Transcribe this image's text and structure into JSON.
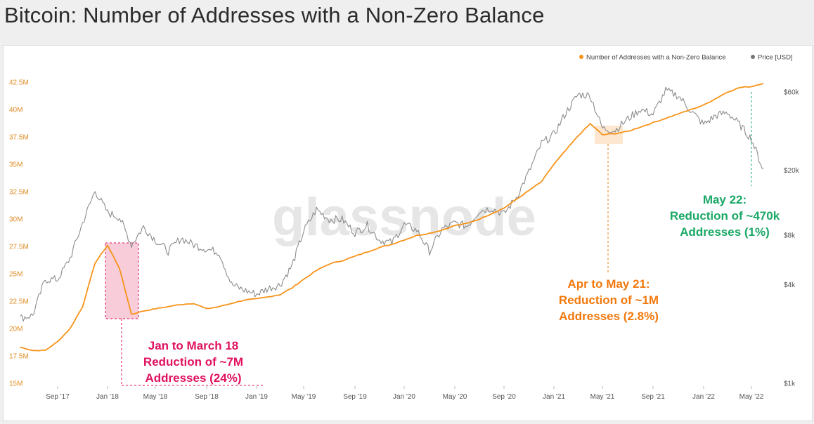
{
  "title": "Bitcoin: Number of Addresses with a Non-Zero Balance",
  "watermark": "glassnode",
  "colors": {
    "addresses": "#f7931a",
    "price": "#8c8c8c",
    "annotation_jan_mar_18": "#e0115f",
    "annotation_apr_may_21": "#f2780c",
    "annotation_may_22": "#1aa866",
    "left_axis": "#e08d28",
    "background": "#ffffff"
  },
  "legend": {
    "addresses_label": "Number of Addresses with a Non-Zero Balance",
    "price_label": "Price [USD]"
  },
  "annotations": {
    "jan_mar_18": [
      "Jan to March 18",
      "Reduction of ~7M",
      "Addresses (24%)"
    ],
    "apr_may_21": [
      "Apr to May 21:",
      "Reduction of ~1M",
      "Addresses (2.8%)"
    ],
    "may_22": [
      "May 22:",
      "Reduction of ~470k",
      "Addresses (1%)"
    ]
  },
  "chart_data": {
    "type": "line",
    "title": "Bitcoin: Number of Addresses with a Non-Zero Balance",
    "x_ticks": [
      "Sep '17",
      "Jan '18",
      "May '18",
      "Sep '18",
      "Jan '19",
      "May '19",
      "Sep '19",
      "Jan '20",
      "May '20",
      "Sep '20",
      "Jan '21",
      "May '21",
      "Sep '21",
      "Jan '22",
      "May '22"
    ],
    "y_left_ticks": [
      "15M",
      "17.5M",
      "20M",
      "22.5M",
      "25M",
      "27.5M",
      "30M",
      "32.5M",
      "35M",
      "37.5M",
      "40M",
      "42.5M"
    ],
    "y_left_range": [
      15,
      42.5
    ],
    "y_right_ticks": [
      "$1k",
      "$4k",
      "$8k",
      "$20k",
      "$60k"
    ],
    "y_right_scale": "log",
    "grid": false,
    "legend_position": "top-right",
    "series": [
      {
        "name": "Number of Addresses with a Non-Zero Balance",
        "axis": "left",
        "unit": "M",
        "points": [
          [
            "2017-06",
            18.3
          ],
          [
            "2017-07",
            18.0
          ],
          [
            "2017-08",
            18.0
          ],
          [
            "2017-09",
            18.8
          ],
          [
            "2017-10",
            20.0
          ],
          [
            "2017-11",
            22.0
          ],
          [
            "2017-12",
            26.0
          ],
          [
            "2018-01",
            27.6
          ],
          [
            "2018-02",
            25.5
          ],
          [
            "2018-03",
            21.3
          ],
          [
            "2018-04",
            21.6
          ],
          [
            "2018-05",
            21.8
          ],
          [
            "2018-06",
            22.0
          ],
          [
            "2018-07",
            22.2
          ],
          [
            "2018-08",
            22.3
          ],
          [
            "2018-09",
            21.8
          ],
          [
            "2018-10",
            22.0
          ],
          [
            "2018-11",
            22.3
          ],
          [
            "2018-12",
            22.6
          ],
          [
            "2019-01",
            22.7
          ],
          [
            "2019-02",
            22.9
          ],
          [
            "2019-03",
            23.1
          ],
          [
            "2019-04",
            23.7
          ],
          [
            "2019-05",
            24.5
          ],
          [
            "2019-06",
            25.3
          ],
          [
            "2019-07",
            25.9
          ],
          [
            "2019-08",
            26.2
          ],
          [
            "2019-09",
            26.6
          ],
          [
            "2019-10",
            27.0
          ],
          [
            "2019-11",
            27.4
          ],
          [
            "2019-12",
            27.7
          ],
          [
            "2020-01",
            28.1
          ],
          [
            "2020-02",
            28.5
          ],
          [
            "2020-03",
            28.7
          ],
          [
            "2020-04",
            29.0
          ],
          [
            "2020-05",
            29.4
          ],
          [
            "2020-06",
            29.6
          ],
          [
            "2020-07",
            30.0
          ],
          [
            "2020-08",
            30.5
          ],
          [
            "2020-09",
            31.0
          ],
          [
            "2020-10",
            31.8
          ],
          [
            "2020-11",
            32.6
          ],
          [
            "2020-12",
            33.4
          ],
          [
            "2021-01",
            35.0
          ],
          [
            "2021-02",
            36.3
          ],
          [
            "2021-03",
            37.6
          ],
          [
            "2021-04",
            38.7
          ],
          [
            "2021-05",
            37.7
          ],
          [
            "2021-06",
            37.8
          ],
          [
            "2021-07",
            38.0
          ],
          [
            "2021-08",
            38.4
          ],
          [
            "2021-09",
            38.8
          ],
          [
            "2021-10",
            39.2
          ],
          [
            "2021-11",
            39.6
          ],
          [
            "2021-12",
            40.0
          ],
          [
            "2022-01",
            40.4
          ],
          [
            "2022-02",
            41.0
          ],
          [
            "2022-03",
            41.6
          ],
          [
            "2022-04",
            42.0
          ],
          [
            "2022-05",
            42.1
          ],
          [
            "2022-06",
            42.4
          ]
        ]
      },
      {
        "name": "Price [USD]",
        "axis": "right",
        "unit": "USD",
        "points": [
          [
            "2017-06",
            2500
          ],
          [
            "2017-07",
            2600
          ],
          [
            "2017-08",
            4300
          ],
          [
            "2017-09",
            4300
          ],
          [
            "2017-10",
            5800
          ],
          [
            "2017-11",
            9500
          ],
          [
            "2017-12",
            15000
          ],
          [
            "2018-01",
            11000
          ],
          [
            "2018-02",
            10300
          ],
          [
            "2018-03",
            7000
          ],
          [
            "2018-04",
            9000
          ],
          [
            "2018-05",
            7500
          ],
          [
            "2018-06",
            6400
          ],
          [
            "2018-07",
            7700
          ],
          [
            "2018-08",
            7000
          ],
          [
            "2018-09",
            6600
          ],
          [
            "2018-10",
            6300
          ],
          [
            "2018-11",
            4000
          ],
          [
            "2018-12",
            3700
          ],
          [
            "2019-01",
            3500
          ],
          [
            "2019-02",
            3800
          ],
          [
            "2019-03",
            4000
          ],
          [
            "2019-04",
            5200
          ],
          [
            "2019-05",
            8500
          ],
          [
            "2019-06",
            11500
          ],
          [
            "2019-07",
            10000
          ],
          [
            "2019-08",
            10000
          ],
          [
            "2019-09",
            8300
          ],
          [
            "2019-10",
            9200
          ],
          [
            "2019-11",
            7500
          ],
          [
            "2019-12",
            7200
          ],
          [
            "2020-01",
            9300
          ],
          [
            "2020-02",
            8600
          ],
          [
            "2020-03",
            6400
          ],
          [
            "2020-04",
            8700
          ],
          [
            "2020-05",
            9500
          ],
          [
            "2020-06",
            9100
          ],
          [
            "2020-07",
            11300
          ],
          [
            "2020-08",
            11700
          ],
          [
            "2020-09",
            10800
          ],
          [
            "2020-10",
            13700
          ],
          [
            "2020-11",
            19500
          ],
          [
            "2020-12",
            29000
          ],
          [
            "2021-01",
            33000
          ],
          [
            "2021-02",
            45000
          ],
          [
            "2021-03",
            58000
          ],
          [
            "2021-04",
            57000
          ],
          [
            "2021-05",
            36000
          ],
          [
            "2021-06",
            35000
          ],
          [
            "2021-07",
            41000
          ],
          [
            "2021-08",
            47000
          ],
          [
            "2021-09",
            43800
          ],
          [
            "2021-10",
            61000
          ],
          [
            "2021-11",
            57000
          ],
          [
            "2021-12",
            46000
          ],
          [
            "2022-01",
            38000
          ],
          [
            "2022-02",
            43000
          ],
          [
            "2022-03",
            45000
          ],
          [
            "2022-04",
            38000
          ],
          [
            "2022-05",
            31000
          ],
          [
            "2022-06",
            20000
          ]
        ]
      }
    ]
  }
}
